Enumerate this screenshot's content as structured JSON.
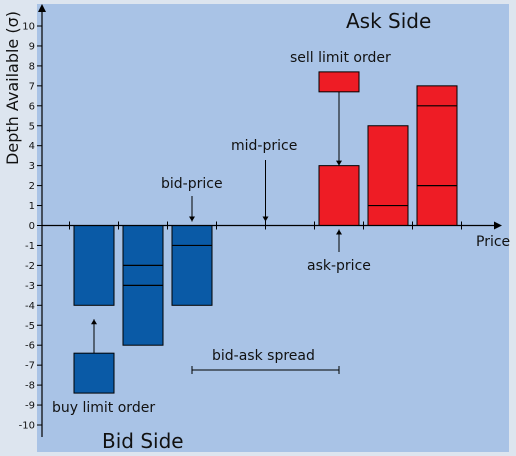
{
  "colors": {
    "frame": "#dde5ef",
    "background": "#a9c3e6",
    "bid_bar": "#0a5aa6",
    "ask_bar": "#ee1c25",
    "outline": "#000000"
  },
  "axes": {
    "y_title": "Depth Available (σ)",
    "x_title": "Price",
    "ylim": [
      -10,
      10
    ],
    "y_ticks": [
      "10",
      "9",
      "8",
      "7",
      "6",
      "5",
      "4",
      "3",
      "2",
      "1",
      "0",
      "-1",
      "-2",
      "-3",
      "-4",
      "-5",
      "-6",
      "-7",
      "-8",
      "-9",
      "-10"
    ]
  },
  "labels": {
    "ask_side": "Ask Side",
    "bid_side": "Bid Side",
    "sell_limit_order": "sell limit order",
    "buy_limit_order": "buy limit order",
    "mid_price": "mid-price",
    "bid_price": "bid-price",
    "ask_price": "ask-price",
    "spread": "bid-ask spread"
  },
  "chart_data": {
    "type": "bar",
    "x_tick_count": 9,
    "bid_bars": [
      {
        "position": 1,
        "bottom": -4,
        "top": 0,
        "dividers": []
      },
      {
        "position": 2,
        "bottom": -6,
        "top": 0,
        "dividers": [
          -2,
          -3
        ]
      },
      {
        "position": 3,
        "bottom": -4,
        "top": 0,
        "dividers": [
          -1
        ]
      }
    ],
    "ask_bars": [
      {
        "position": 6,
        "bottom": 0,
        "top": 3,
        "dividers": []
      },
      {
        "position": 7,
        "bottom": 0,
        "top": 5,
        "dividers": [
          1
        ]
      },
      {
        "position": 8,
        "bottom": 0,
        "top": 7,
        "dividers": [
          2,
          6
        ]
      }
    ],
    "sell_limit_order": {
      "position": 6,
      "bottom": 6.7,
      "top": 7.7
    },
    "buy_limit_order": {
      "position": 1,
      "bottom": -8.4,
      "top": -6.4
    }
  }
}
